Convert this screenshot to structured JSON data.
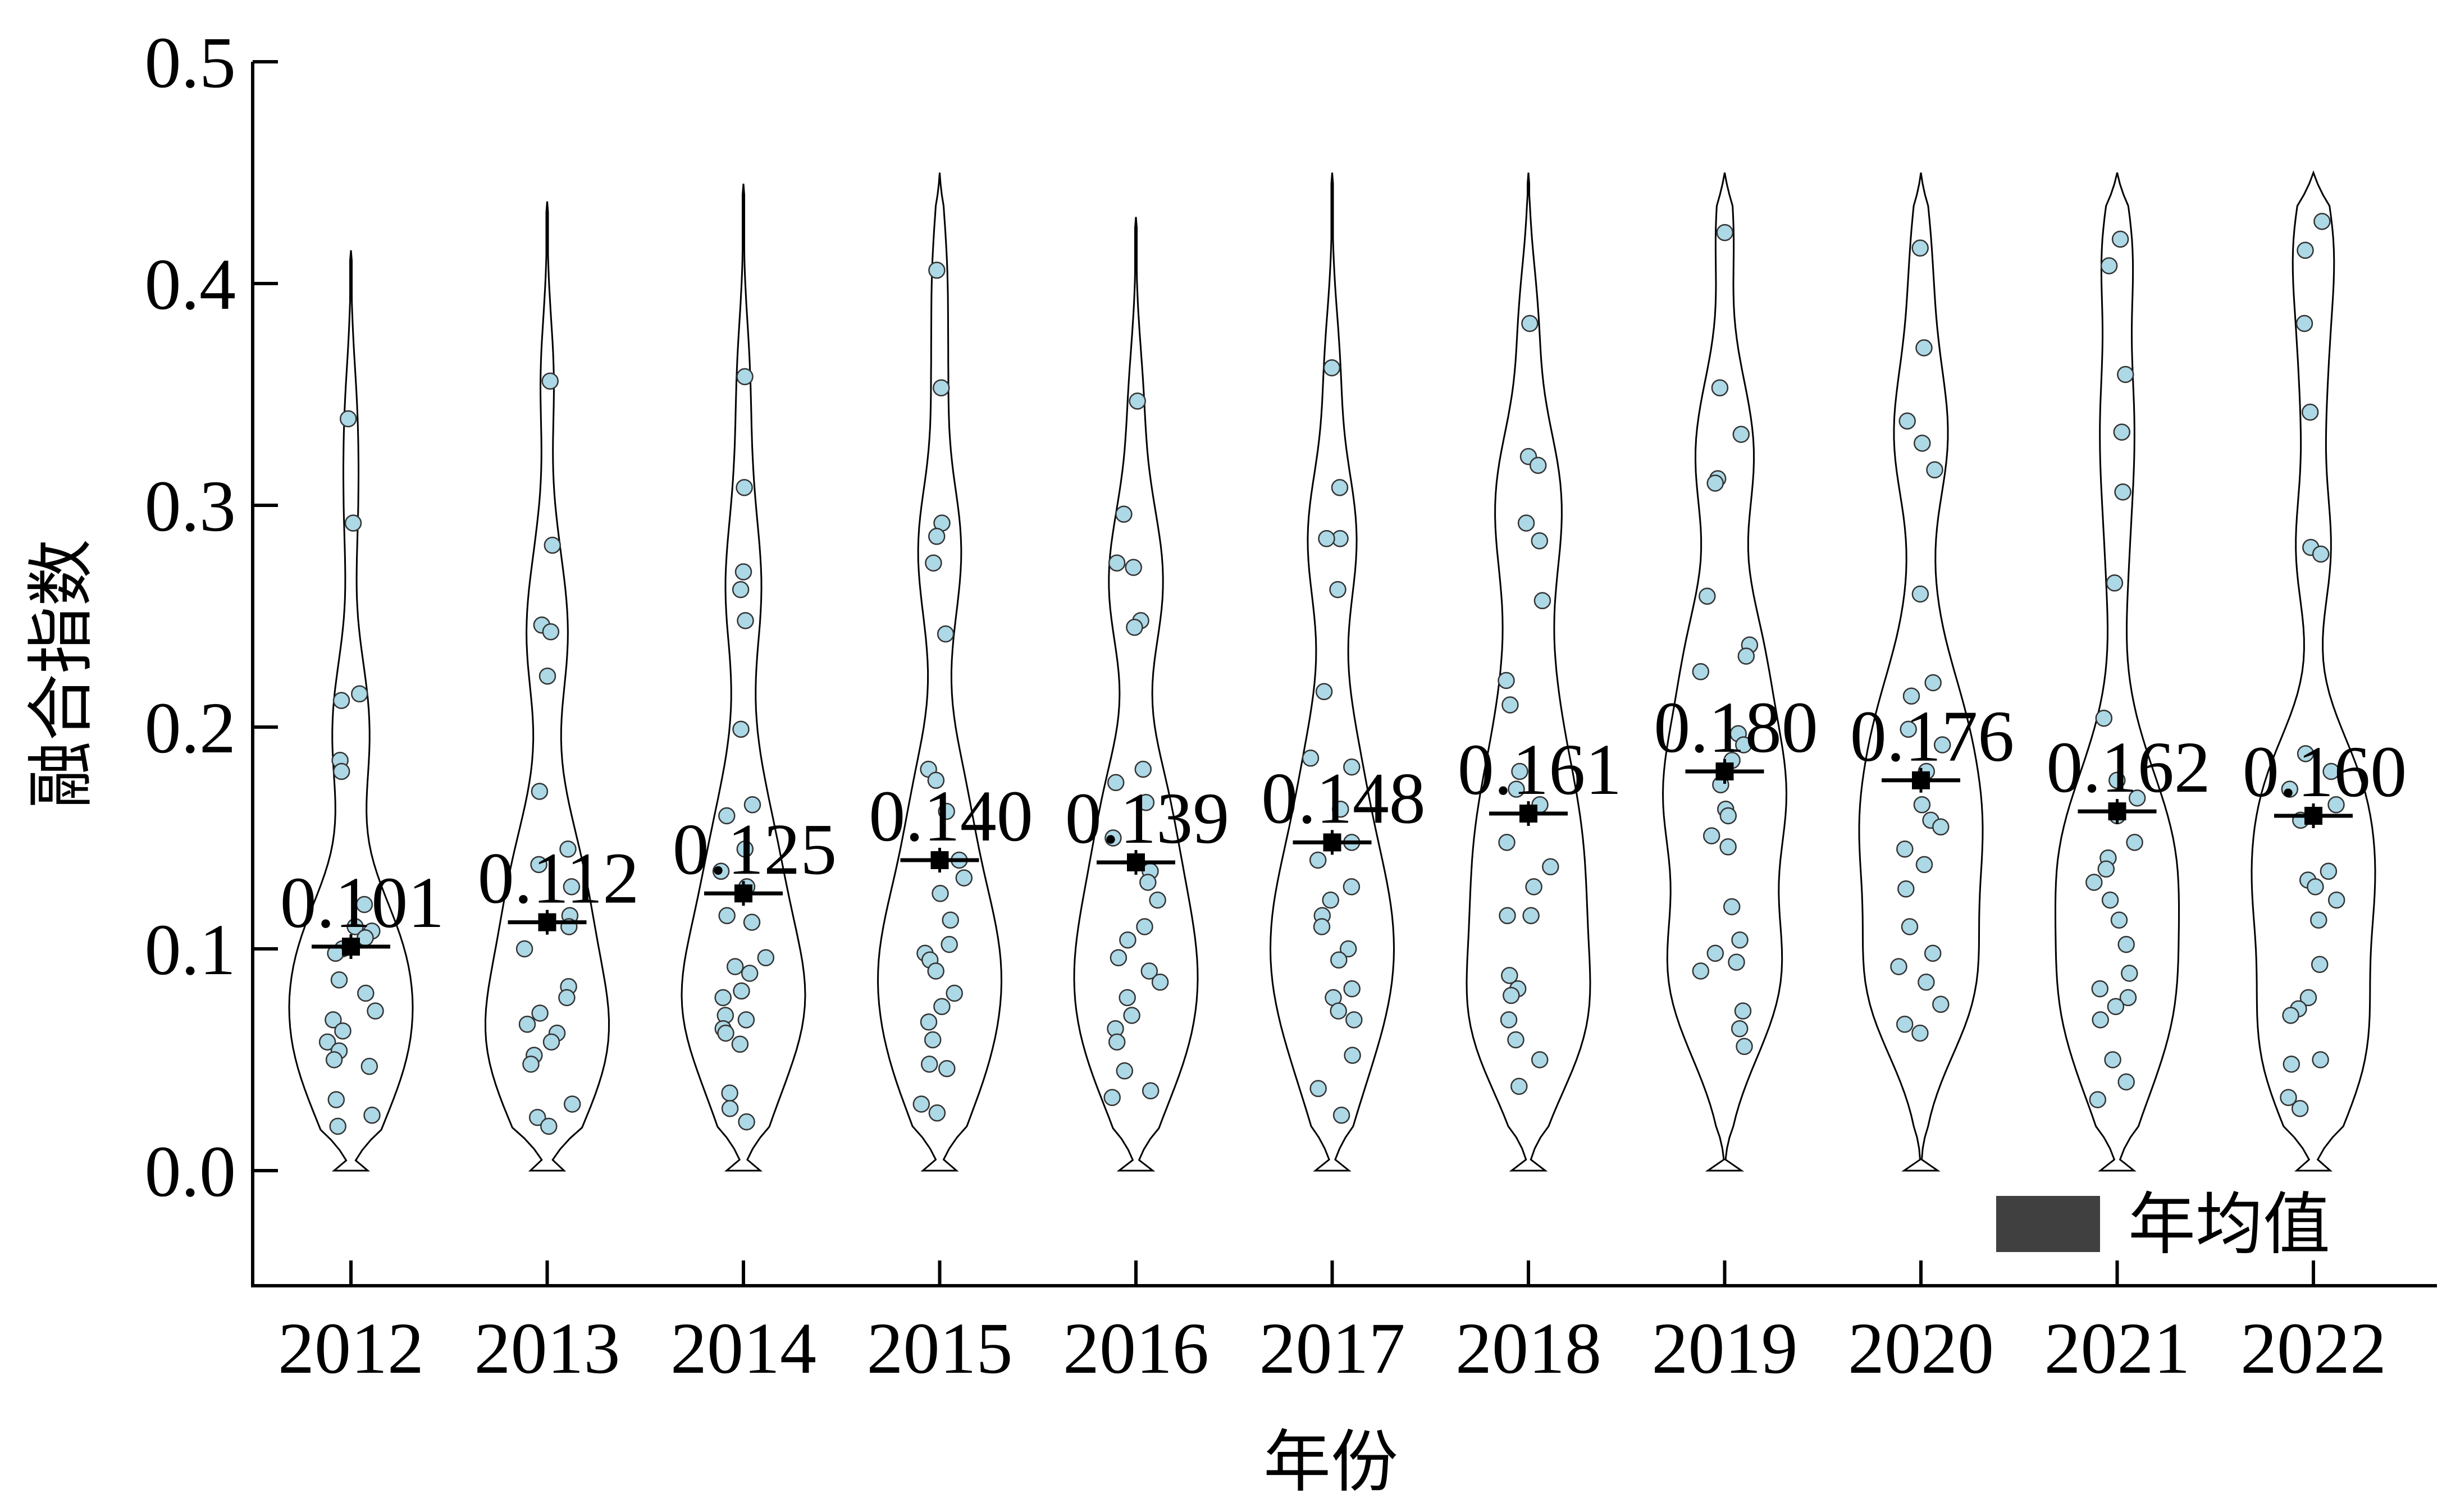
{
  "chart_data": {
    "type": "violin",
    "xlabel": "年份",
    "ylabel": "融合指数",
    "ylim": [
      -0.05,
      0.5
    ],
    "yticks": [
      "0.0",
      "0.1",
      "0.2",
      "0.3",
      "0.4",
      "0.5"
    ],
    "categories": [
      "2012",
      "2013",
      "2014",
      "2015",
      "2016",
      "2017",
      "2018",
      "2019",
      "2020",
      "2021",
      "2022"
    ],
    "mean_values": [
      0.101,
      0.112,
      0.125,
      0.14,
      0.139,
      0.148,
      0.161,
      0.18,
      0.176,
      0.162,
      0.16
    ],
    "mean_labels": [
      "0.101",
      "0.112",
      "0.125",
      "0.140",
      "0.139",
      "0.148",
      "0.161",
      "0.180",
      "0.176",
      "0.162",
      "0.160"
    ],
    "legend": {
      "label": "年均值",
      "color": "#404040",
      "position": "bottom-right"
    },
    "point_color": "#add8e6",
    "points": [
      [
        0.339,
        0.292,
        0.215,
        0.212,
        0.185,
        0.18,
        0.12,
        0.11,
        0.108,
        0.105,
        0.1,
        0.098,
        0.086,
        0.08,
        0.072,
        0.068,
        0.063,
        0.058,
        0.054,
        0.05,
        0.047,
        0.032,
        0.025,
        0.02
      ],
      [
        0.356,
        0.282,
        0.246,
        0.243,
        0.223,
        0.171,
        0.145,
        0.138,
        0.128,
        0.115,
        0.11,
        0.1,
        0.083,
        0.078,
        0.071,
        0.066,
        0.062,
        0.058,
        0.052,
        0.048,
        0.03,
        0.024,
        0.02
      ],
      [
        0.358,
        0.308,
        0.27,
        0.262,
        0.248,
        0.199,
        0.165,
        0.16,
        0.145,
        0.135,
        0.128,
        0.115,
        0.112,
        0.096,
        0.092,
        0.089,
        0.081,
        0.078,
        0.07,
        0.068,
        0.064,
        0.062,
        0.057,
        0.035,
        0.028,
        0.022
      ],
      [
        0.406,
        0.353,
        0.292,
        0.286,
        0.274,
        0.242,
        0.181,
        0.176,
        0.162,
        0.14,
        0.132,
        0.125,
        0.113,
        0.102,
        0.098,
        0.095,
        0.09,
        0.08,
        0.074,
        0.067,
        0.059,
        0.048,
        0.046,
        0.03,
        0.026
      ],
      [
        0.347,
        0.296,
        0.274,
        0.272,
        0.248,
        0.245,
        0.181,
        0.175,
        0.166,
        0.15,
        0.135,
        0.13,
        0.122,
        0.11,
        0.104,
        0.096,
        0.09,
        0.085,
        0.078,
        0.07,
        0.064,
        0.058,
        0.045,
        0.036,
        0.033
      ],
      [
        0.362,
        0.308,
        0.285,
        0.285,
        0.262,
        0.216,
        0.186,
        0.182,
        0.163,
        0.148,
        0.14,
        0.128,
        0.122,
        0.115,
        0.11,
        0.1,
        0.095,
        0.082,
        0.078,
        0.072,
        0.068,
        0.052,
        0.037,
        0.025
      ],
      [
        0.382,
        0.322,
        0.318,
        0.292,
        0.284,
        0.257,
        0.221,
        0.21,
        0.18,
        0.172,
        0.165,
        0.148,
        0.137,
        0.128,
        0.115,
        0.115,
        0.088,
        0.082,
        0.079,
        0.068,
        0.059,
        0.05,
        0.038
      ],
      [
        0.423,
        0.353,
        0.332,
        0.312,
        0.31,
        0.259,
        0.237,
        0.232,
        0.225,
        0.197,
        0.192,
        0.185,
        0.174,
        0.163,
        0.16,
        0.151,
        0.146,
        0.119,
        0.104,
        0.098,
        0.094,
        0.09,
        0.072,
        0.064,
        0.056
      ],
      [
        0.416,
        0.371,
        0.338,
        0.328,
        0.316,
        0.26,
        0.22,
        0.214,
        0.199,
        0.192,
        0.18,
        0.165,
        0.158,
        0.155,
        0.145,
        0.138,
        0.127,
        0.11,
        0.098,
        0.092,
        0.085,
        0.075,
        0.066,
        0.062
      ],
      [
        0.42,
        0.408,
        0.359,
        0.333,
        0.306,
        0.265,
        0.204,
        0.176,
        0.168,
        0.16,
        0.148,
        0.141,
        0.136,
        0.13,
        0.122,
        0.113,
        0.102,
        0.089,
        0.082,
        0.078,
        0.074,
        0.068,
        0.05,
        0.04,
        0.032
      ],
      [
        0.428,
        0.415,
        0.382,
        0.342,
        0.281,
        0.278,
        0.188,
        0.18,
        0.172,
        0.165,
        0.158,
        0.135,
        0.131,
        0.128,
        0.122,
        0.113,
        0.093,
        0.078,
        0.073,
        0.07,
        0.05,
        0.048,
        0.033,
        0.028
      ]
    ],
    "violin_max": [
      0.415,
      0.437,
      0.445,
      0.45,
      0.43,
      0.45,
      0.45,
      0.45,
      0.45,
      0.45,
      0.45
    ]
  }
}
